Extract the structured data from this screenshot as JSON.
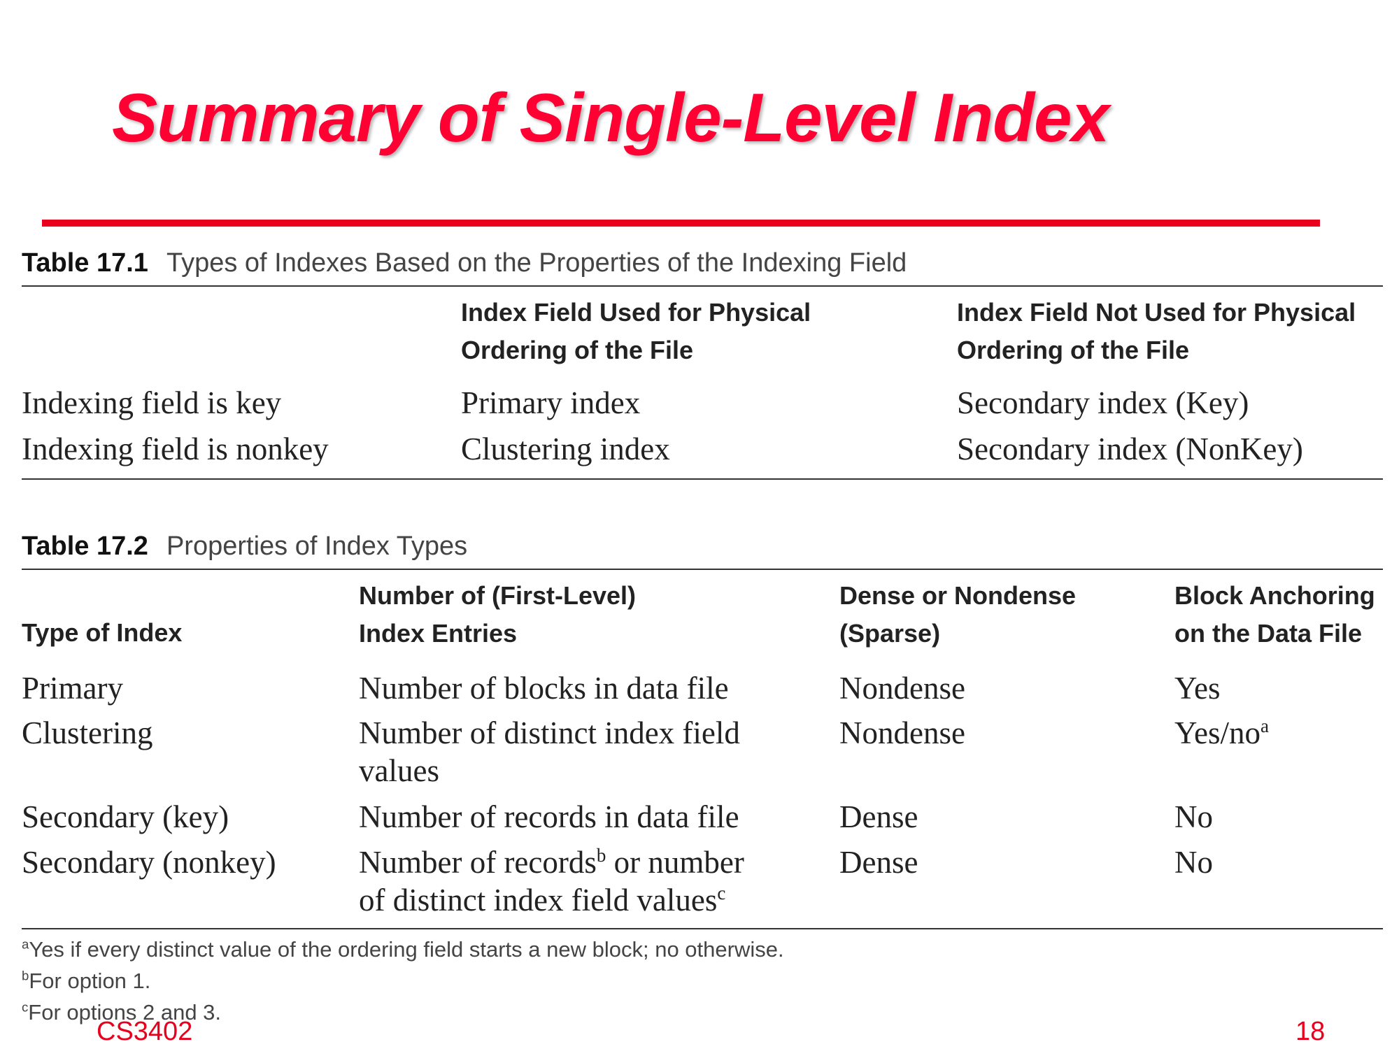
{
  "slide_title": "Summary of Single-Level Index",
  "table1": {
    "label": "Table 17.1",
    "caption": "Types of Indexes Based on the Properties of the Indexing Field",
    "col2_header": [
      "Index Field Used for Physical",
      "Ordering of the File"
    ],
    "col3_header": [
      "Index Field Not Used for Physical",
      "Ordering of the File"
    ],
    "rows": [
      [
        "Indexing field is key",
        "Primary index",
        "Secondary index (Key)"
      ],
      [
        "Indexing field is nonkey",
        "Clustering index",
        "Secondary index (NonKey)"
      ]
    ]
  },
  "table2": {
    "label": "Table 17.2",
    "caption": "Properties of Index Types",
    "headers": {
      "type": "Type of Index",
      "entries": [
        "Number of (First-Level)",
        "Index Entries"
      ],
      "dense": [
        "Dense or Nondense",
        "(Sparse)"
      ],
      "anchoring": [
        "Block Anchoring",
        "on the Data File"
      ]
    },
    "rows": [
      {
        "type": "Primary",
        "entries": "Number of blocks in data file",
        "dense": "Nondense",
        "anchoring": "Yes"
      },
      {
        "type": "Clustering",
        "entries_line1": "Number of distinct index field",
        "entries_line2": "values",
        "dense": "Nondense",
        "anchoring": "Yes/no",
        "anchoring_sup": "a"
      },
      {
        "type": "Secondary (key)",
        "entries": "Number of records in data file",
        "dense": "Dense",
        "anchoring": "No"
      },
      {
        "type": "Secondary (nonkey)",
        "entries_line1a": "Number of records",
        "entries_line1_sup": "b",
        "entries_line1b": " or number",
        "entries_line2": "of distinct index field values",
        "entries_line2_sup": "c",
        "dense": "Dense",
        "anchoring": "No"
      }
    ],
    "footnotes": [
      {
        "mark": "a",
        "text": "Yes if every distinct value of the ordering field starts a new block; no otherwise."
      },
      {
        "mark": "b",
        "text": "For option 1."
      },
      {
        "mark": "c",
        "text": "For options 2 and 3."
      }
    ]
  },
  "footer": {
    "course": "CS3402",
    "page": "18"
  },
  "colors": {
    "title": "#ff0033",
    "rule": "#e8001c",
    "text": "#222222"
  }
}
